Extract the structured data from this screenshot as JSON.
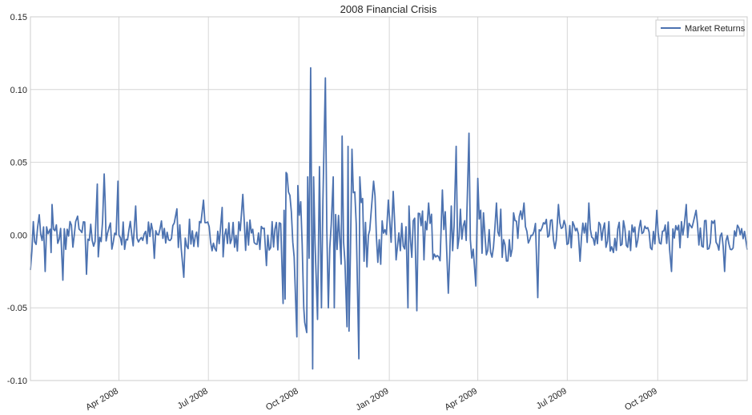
{
  "chart_data": {
    "type": "line",
    "title": "2008 Financial Crisis",
    "xlabel": "",
    "ylabel": "",
    "x_range": [
      "2008-01-02",
      "2009-12-31"
    ],
    "ylim": [
      -0.1,
      0.15
    ],
    "y_ticks": [
      -0.1,
      -0.05,
      0.0,
      0.05,
      0.1,
      0.15
    ],
    "y_tick_labels": [
      "-0.10",
      "-0.05",
      "0.00",
      "0.05",
      "0.10",
      "0.15"
    ],
    "x_ticks": [
      "2008-04-01",
      "2008-07-01",
      "2008-10-01",
      "2009-01-01",
      "2009-04-01",
      "2009-07-01",
      "2009-10-01"
    ],
    "x_tick_labels": [
      "Apr 2008",
      "Jul 2008",
      "Oct 2008",
      "Jan 2009",
      "Apr 2009",
      "Jul 2009",
      "Oct 2009"
    ],
    "grid": true,
    "legend_position": "top-right",
    "line_color": "#4c72b0",
    "series": [
      {
        "name": "Market Returns",
        "dates": [
          "2008-01-02",
          "2008-01-11",
          "2008-01-17",
          "2008-01-22",
          "2008-01-23",
          "2008-01-24",
          "2008-02-04",
          "2008-02-19",
          "2008-02-28",
          "2008-03-10",
          "2008-03-11",
          "2008-03-17",
          "2008-03-18",
          "2008-03-19",
          "2008-03-31",
          "2008-04-01",
          "2008-04-18",
          "2008-05-07",
          "2008-05-30",
          "2008-06-06",
          "2008-06-26",
          "2008-07-15",
          "2008-07-16",
          "2008-08-05",
          "2008-08-29",
          "2008-09-15",
          "2008-09-16",
          "2008-09-17",
          "2008-09-18",
          "2008-09-19",
          "2008-09-29",
          "2008-09-30",
          "2008-10-06",
          "2008-10-07",
          "2008-10-09",
          "2008-10-10",
          "2008-10-13",
          "2008-10-15",
          "2008-10-16",
          "2008-10-20",
          "2008-10-22",
          "2008-10-24",
          "2008-10-28",
          "2008-10-31",
          "2008-11-05",
          "2008-11-06",
          "2008-11-13",
          "2008-11-14",
          "2008-11-19",
          "2008-11-20",
          "2008-11-21",
          "2008-11-24",
          "2008-12-01",
          "2008-12-02",
          "2008-12-16",
          "2008-12-31",
          "2009-01-05",
          "2009-01-20",
          "2009-01-21",
          "2009-01-29",
          "2009-02-10",
          "2009-02-24",
          "2009-03-02",
          "2009-03-05",
          "2009-03-10",
          "2009-03-23",
          "2009-03-30",
          "2009-04-01",
          "2009-04-20",
          "2009-05-18",
          "2009-06-01",
          "2009-06-22",
          "2009-07-14",
          "2009-07-23",
          "2009-08-17",
          "2009-09-30",
          "2009-10-15",
          "2009-10-30",
          "2009-11-09",
          "2009-12-08",
          "2009-12-31"
        ],
        "values": [
          -0.024,
          0.014,
          -0.025,
          0.004,
          -0.012,
          0.021,
          -0.031,
          0.013,
          -0.027,
          0.035,
          -0.015,
          0.042,
          0.023,
          -0.004,
          0.037,
          0.0,
          0.02,
          -0.016,
          0.018,
          -0.029,
          0.024,
          0.019,
          -0.015,
          0.028,
          -0.021,
          -0.047,
          0.017,
          -0.044,
          0.043,
          0.042,
          -0.07,
          0.034,
          -0.05,
          -0.06,
          -0.067,
          0.04,
          0.115,
          -0.092,
          0.04,
          -0.058,
          0.047,
          -0.05,
          0.108,
          -0.05,
          0.04,
          -0.05,
          -0.02,
          0.068,
          -0.063,
          0.061,
          -0.066,
          0.059,
          -0.085,
          0.04,
          0.037,
          0.024,
          0.03,
          -0.05,
          0.02,
          -0.052,
          0.022,
          0.031,
          -0.04,
          0.02,
          0.061,
          0.07,
          -0.035,
          0.039,
          0.022,
          0.022,
          -0.043,
          0.021,
          -0.018,
          0.022,
          -0.012,
          0.017,
          -0.025,
          0.021,
          0.017,
          -0.025,
          -0.01
        ]
      }
    ]
  }
}
